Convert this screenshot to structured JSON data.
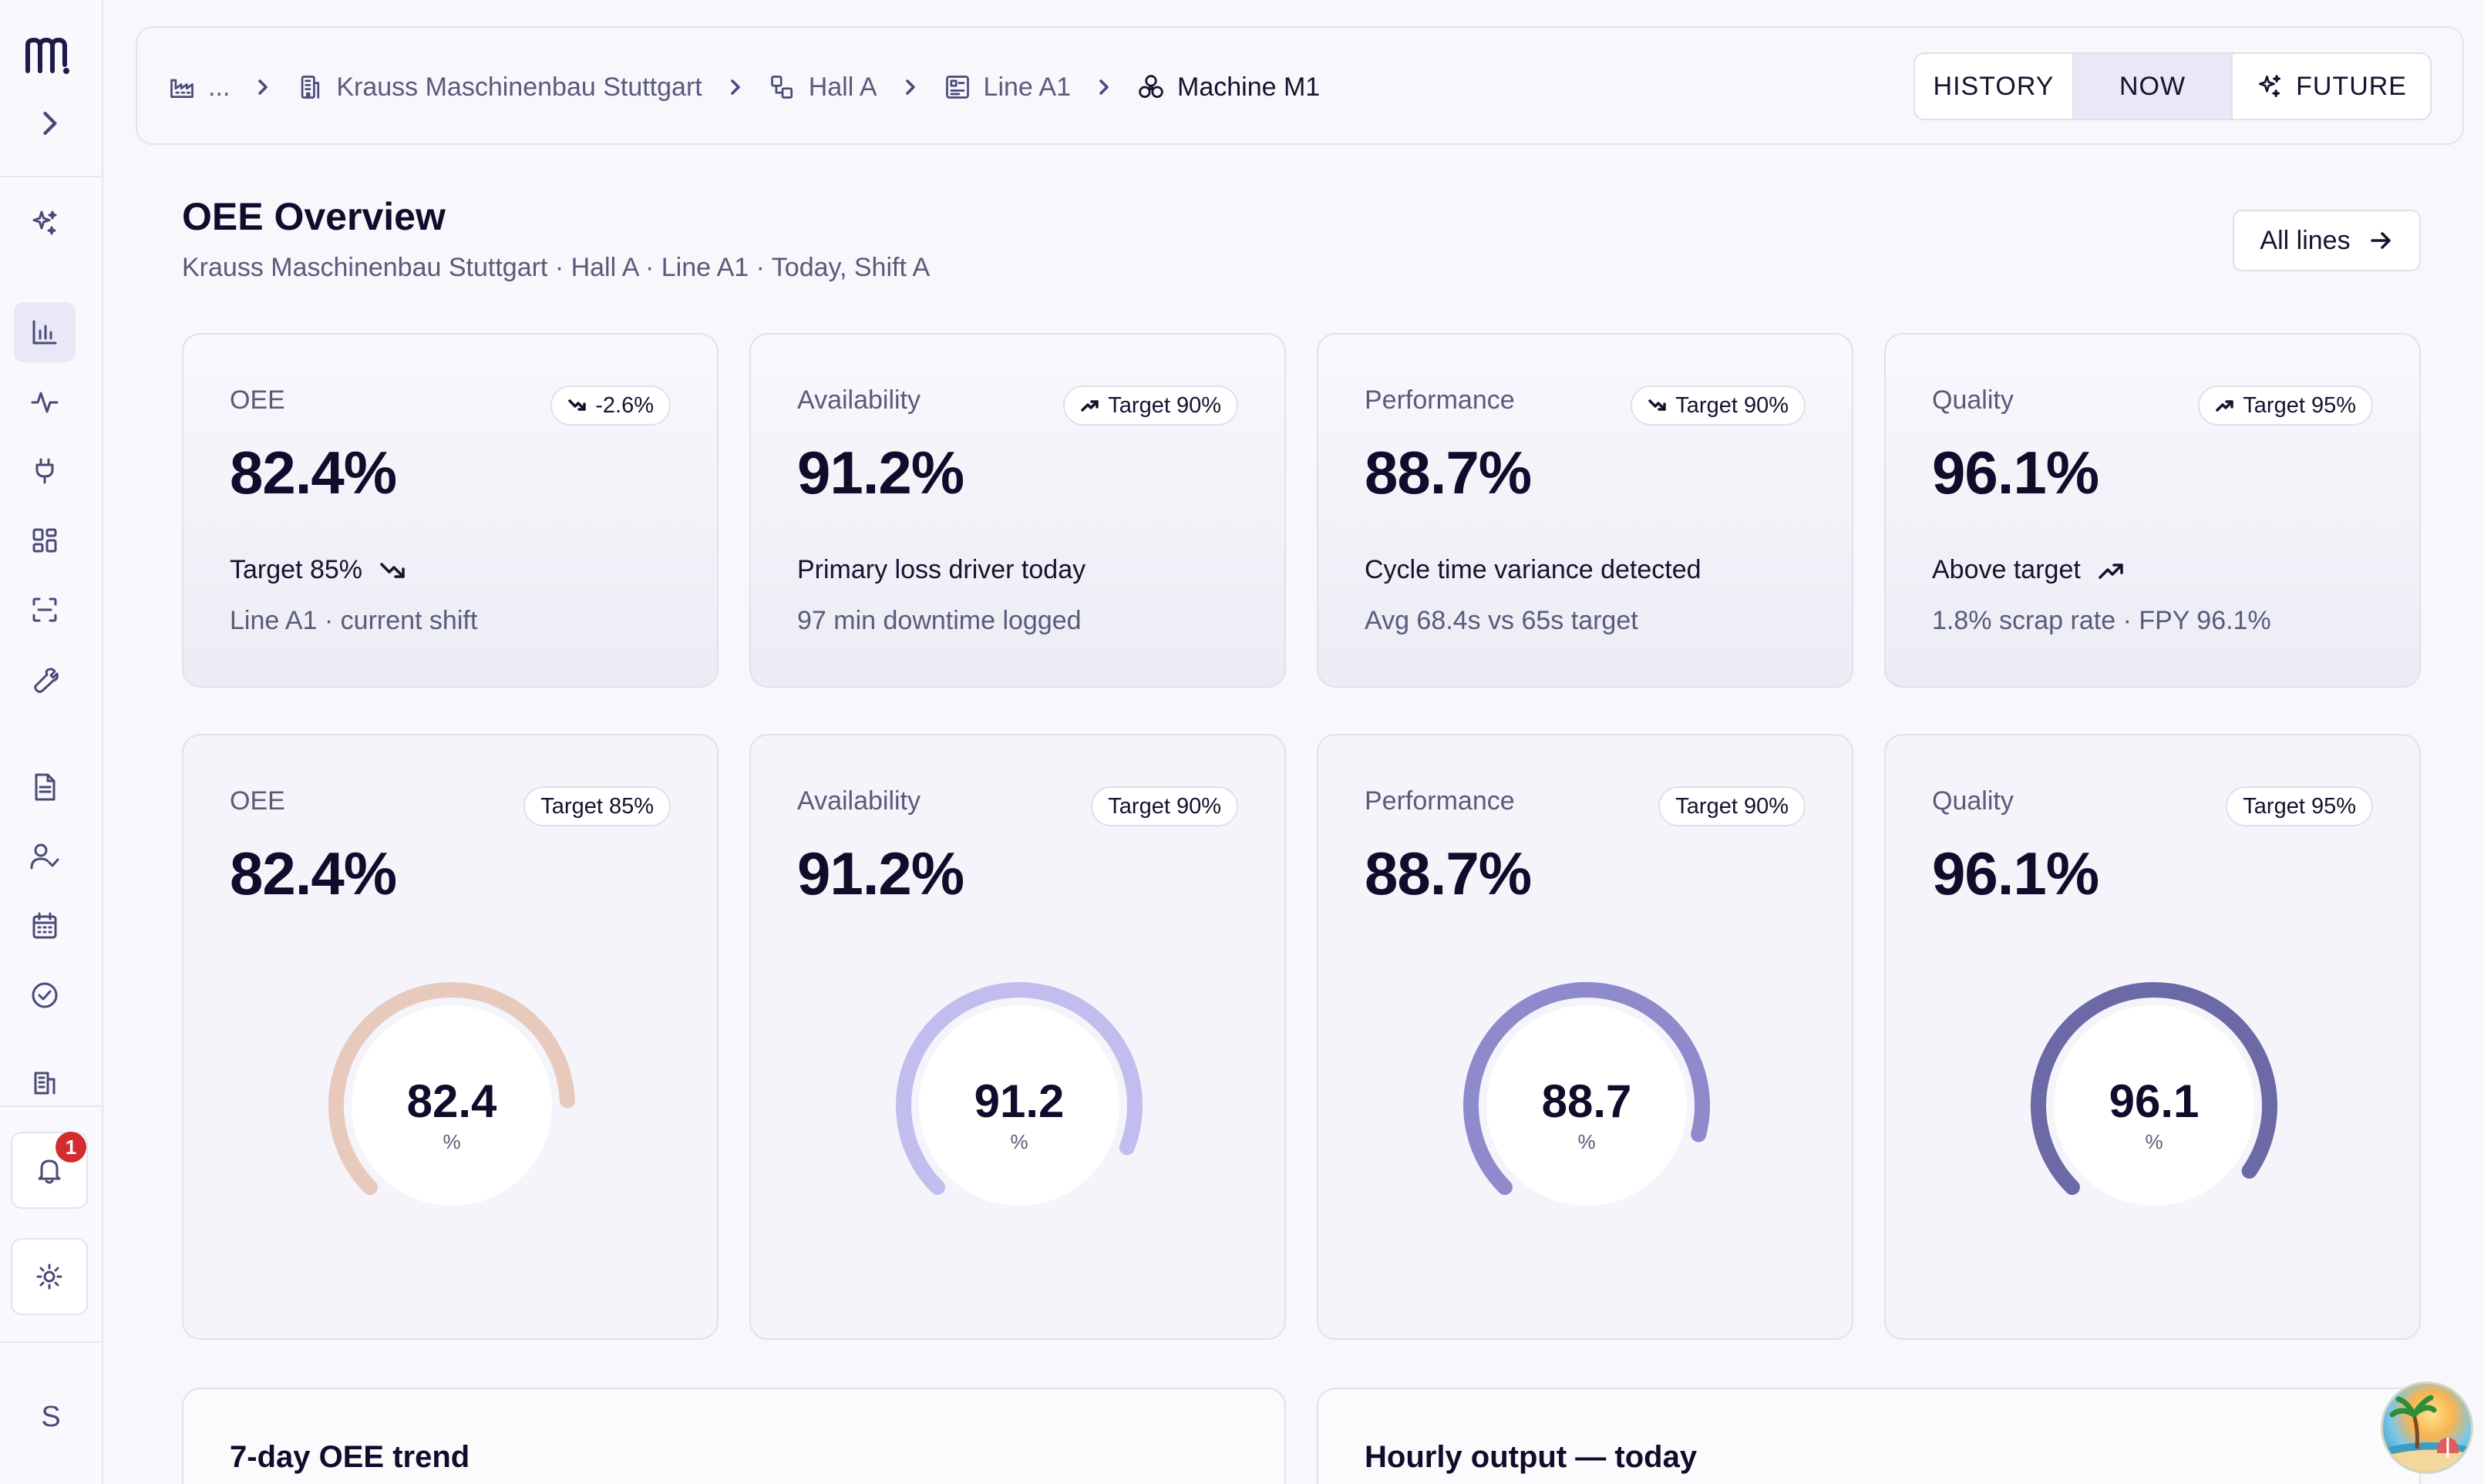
{
  "sidebar": {
    "logo": "logo-icon",
    "notifications_count": "1",
    "avatar_letter": "S",
    "icons": [
      "sparkles-icon",
      "bar-chart-icon",
      "activity-icon",
      "plug-icon",
      "layout-grid-icon",
      "scan-icon",
      "wrench-icon",
      "file-text-icon",
      "user-check-icon",
      "calendar-icon",
      "check-circle-icon",
      "building-icon"
    ]
  },
  "breadcrumb": {
    "ellipsis": "...",
    "items": [
      {
        "label": "Krauss Maschinenbau Stuttgart",
        "icon": "building-icon"
      },
      {
        "label": "Hall A",
        "icon": "hall-icon"
      },
      {
        "label": "Line A1",
        "icon": "line-icon"
      },
      {
        "label": "Machine M1",
        "icon": "machine-icon"
      }
    ]
  },
  "time_mode": {
    "options": [
      "HISTORY",
      "NOW",
      "FUTURE"
    ],
    "selected": "NOW"
  },
  "header": {
    "title": "OEE Overview",
    "subtitle": "Krauss Maschinenbau Stuttgart · Hall A · Line A1 · Today, Shift A",
    "all_lines_label": "All lines"
  },
  "kpis": [
    {
      "label": "OEE",
      "value": "82.4%",
      "pill": "-2.6%",
      "pill_trend": "down",
      "line1": "Target 85%",
      "line1_trend": "down",
      "line2": "Line A1 · current shift"
    },
    {
      "label": "Availability",
      "value": "91.2%",
      "pill": "Target 90%",
      "pill_trend": "up",
      "line1": "Primary loss driver today",
      "line2": "97 min downtime logged"
    },
    {
      "label": "Performance",
      "value": "88.7%",
      "pill": "Target 90%",
      "pill_trend": "down",
      "line1": "Cycle time variance detected",
      "line2": "Avg 68.4s vs 65s target"
    },
    {
      "label": "Quality",
      "value": "96.1%",
      "pill": "Target 95%",
      "pill_trend": "up",
      "line1": "Above target",
      "line1_trend": "up",
      "line2": "1.8% scrap rate · FPY 96.1%"
    }
  ],
  "gauges": [
    {
      "label": "OEE",
      "value": "82.4%",
      "target": "Target 85%",
      "gauge_value": "82.4",
      "unit": "%",
      "fraction": 0.824,
      "color": "#e8cabd"
    },
    {
      "label": "Availability",
      "value": "91.2%",
      "target": "Target 90%",
      "gauge_value": "91.2",
      "unit": "%",
      "fraction": 0.912,
      "color": "#c1bdef"
    },
    {
      "label": "Performance",
      "value": "88.7%",
      "target": "Target 90%",
      "gauge_value": "88.7",
      "unit": "%",
      "fraction": 0.887,
      "color": "#8e8acb"
    },
    {
      "label": "Quality",
      "value": "96.1%",
      "target": "Target 95%",
      "gauge_value": "96.1",
      "unit": "%",
      "fraction": 0.961,
      "color": "#6b69a6"
    }
  ],
  "bottom": {
    "trend_title": "7-day OEE trend",
    "hourly_title": "Hourly output — today"
  }
}
